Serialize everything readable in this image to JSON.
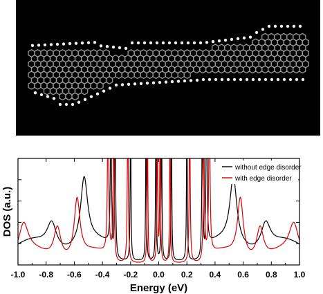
{
  "molecule_image": {
    "description_icon": "graphene-nanoribbon-structure-icon",
    "background": "#000000",
    "bond_color": "#9a9a9a",
    "hydrogen_color": "#f0f0f0"
  },
  "chart_data": {
    "type": "line",
    "title": "",
    "xlabel": "Energy (eV)",
    "ylabel": "DOS (a.u.)",
    "xlim": [
      -1.0,
      1.0
    ],
    "xticks": [
      "-1.0",
      "-0.8",
      "-0.6",
      "-0.4",
      "-0.2",
      "0.0",
      "0.2",
      "0.4",
      "0.6",
      "0.8",
      "1.0"
    ],
    "xtick_values": [
      -1.0,
      -0.8,
      -0.6,
      -0.4,
      -0.2,
      0.0,
      0.2,
      0.4,
      0.6,
      0.8,
      1.0
    ],
    "ylim": [
      0,
      1
    ],
    "grid": false,
    "legend_position": "top-right",
    "series": [
      {
        "name": "without edge disorder",
        "color": "#000000",
        "peaks": [
          {
            "e": -0.53,
            "h": 0.62,
            "w": 0.03
          },
          {
            "e": 0.53,
            "h": 0.62,
            "w": 0.03
          },
          {
            "e": -0.34,
            "h": 1.5,
            "w": 0.004
          },
          {
            "e": 0.34,
            "h": 1.5,
            "w": 0.004
          },
          {
            "e": -0.31,
            "h": 1.5,
            "w": 0.004
          },
          {
            "e": 0.31,
            "h": 1.5,
            "w": 0.004
          },
          {
            "e": -0.2,
            "h": 1.5,
            "w": 0.003
          },
          {
            "e": 0.2,
            "h": 1.5,
            "w": 0.003
          },
          {
            "e": -0.09,
            "h": 1.5,
            "w": 0.003
          },
          {
            "e": 0.09,
            "h": 1.5,
            "w": 0.003
          },
          {
            "e": -0.02,
            "h": 1.5,
            "w": 0.003
          },
          {
            "e": 0.02,
            "h": 1.5,
            "w": 0.003
          },
          {
            "e": -0.76,
            "h": 0.24,
            "w": 0.04
          },
          {
            "e": 0.76,
            "h": 0.24,
            "w": 0.04
          }
        ],
        "baseline_outer": 0.18,
        "baseline_inner": 0.03
      },
      {
        "name": "with edge disorder",
        "color": "#dd0000",
        "peaks": [
          {
            "e": -0.58,
            "h": 0.55,
            "w": 0.025
          },
          {
            "e": 0.58,
            "h": 0.55,
            "w": 0.025
          },
          {
            "e": -0.36,
            "h": 1.5,
            "w": 0.005
          },
          {
            "e": 0.36,
            "h": 1.5,
            "w": 0.005
          },
          {
            "e": -0.32,
            "h": 1.5,
            "w": 0.004
          },
          {
            "e": 0.32,
            "h": 1.5,
            "w": 0.004
          },
          {
            "e": -0.22,
            "h": 1.5,
            "w": 0.004
          },
          {
            "e": 0.22,
            "h": 1.5,
            "w": 0.004
          },
          {
            "e": -0.08,
            "h": 1.5,
            "w": 0.003
          },
          {
            "e": 0.08,
            "h": 1.5,
            "w": 0.003
          },
          {
            "e": -0.01,
            "h": 1.5,
            "w": 0.003
          },
          {
            "e": 0.01,
            "h": 1.5,
            "w": 0.003
          },
          {
            "e": -0.72,
            "h": 0.3,
            "w": 0.03
          },
          {
            "e": 0.72,
            "h": 0.3,
            "w": 0.03
          },
          {
            "e": -0.96,
            "h": 0.28,
            "w": 0.04
          },
          {
            "e": 0.96,
            "h": 0.28,
            "w": 0.04
          }
        ],
        "baseline_outer": 0.08,
        "baseline_inner": 0.01
      }
    ]
  }
}
